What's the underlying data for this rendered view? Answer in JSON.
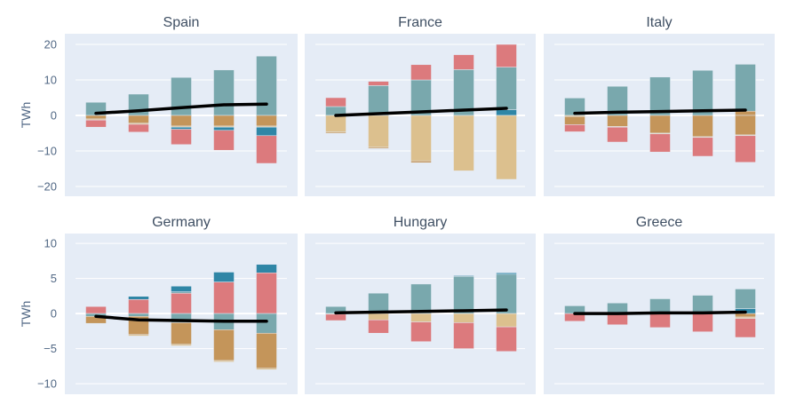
{
  "chart_data": {
    "type": "bar",
    "barmode": "relative",
    "ylabel": "TWh",
    "grid": true,
    "series_colors": {
      "teal": "#79a8ad",
      "blue": "#2f86a6",
      "ochre": "#c4955a",
      "sand": "#dcc08e",
      "red": "#dc7a7d",
      "net": "#000000"
    },
    "rows": [
      {
        "ylim": [
          -22.75,
          23
        ],
        "ticks": [
          20,
          10,
          0,
          -10,
          -20
        ],
        "tick_labels": [
          "20",
          "10",
          "0",
          "−10",
          "−20"
        ]
      },
      {
        "ylim": [
          -11.5,
          11.4
        ],
        "ticks": [
          10,
          5,
          0,
          -5,
          -10
        ],
        "tick_labels": [
          "10",
          "5",
          "0",
          "−5",
          "−10"
        ]
      }
    ],
    "panels": [
      {
        "title": "Spain",
        "row": 0,
        "col": 0,
        "bars": [
          {
            "pos": [
              [
                "teal",
                3.7
              ]
            ],
            "neg": [
              [
                "ochre",
                -1.0
              ],
              [
                "sand",
                -0.3
              ],
              [
                "red",
                -2.0
              ]
            ]
          },
          {
            "pos": [
              [
                "teal",
                6.0
              ]
            ],
            "neg": [
              [
                "ochre",
                -2.2
              ],
              [
                "sand",
                -0.3
              ],
              [
                "red",
                -2.2
              ]
            ]
          },
          {
            "pos": [
              [
                "teal",
                10.7
              ]
            ],
            "neg": [
              [
                "ochre",
                -3.0
              ],
              [
                "sand",
                -0.3
              ],
              [
                "blue",
                -0.6
              ],
              [
                "red",
                -4.3
              ]
            ]
          },
          {
            "pos": [
              [
                "teal",
                12.8
              ]
            ],
            "neg": [
              [
                "ochre",
                -3.0
              ],
              [
                "sand",
                -0.3
              ],
              [
                "blue",
                -0.9
              ],
              [
                "red",
                -5.6
              ]
            ]
          },
          {
            "pos": [
              [
                "teal",
                16.7
              ]
            ],
            "neg": [
              [
                "ochre",
                -3.0
              ],
              [
                "sand",
                -0.3
              ],
              [
                "blue",
                -2.4
              ],
              [
                "red",
                -7.8
              ]
            ]
          }
        ],
        "net": [
          0.6,
          1.3,
          2.2,
          3.0,
          3.2
        ]
      },
      {
        "title": "France",
        "row": 0,
        "col": 1,
        "bars": [
          {
            "pos": [
              [
                "teal",
                2.5
              ],
              [
                "red",
                2.5
              ]
            ],
            "neg": [
              [
                "sand",
                -4.7
              ],
              [
                "ochre",
                -0.3
              ]
            ]
          },
          {
            "pos": [
              [
                "teal",
                8.4
              ],
              [
                "red",
                1.2
              ]
            ],
            "neg": [
              [
                "sand",
                -9.0
              ],
              [
                "ochre",
                -0.3
              ]
            ]
          },
          {
            "pos": [
              [
                "teal",
                10.0
              ],
              [
                "red",
                4.3
              ]
            ],
            "neg": [
              [
                "sand",
                -12.8
              ],
              [
                "ochre",
                -0.5
              ]
            ]
          },
          {
            "pos": [
              [
                "teal",
                12.9
              ],
              [
                "red",
                4.2
              ]
            ],
            "neg": [
              [
                "sand",
                -15.6
              ]
            ]
          },
          {
            "pos": [
              [
                "blue",
                1.6
              ],
              [
                "teal",
                12.0
              ],
              [
                "red",
                6.4
              ]
            ],
            "neg": [
              [
                "sand",
                -18.0
              ]
            ]
          }
        ],
        "net": [
          0.0,
          0.5,
          1.0,
          1.5,
          2.0
        ]
      },
      {
        "title": "Italy",
        "row": 0,
        "col": 2,
        "bars": [
          {
            "pos": [
              [
                "teal",
                4.9
              ]
            ],
            "neg": [
              [
                "sand",
                -0.3
              ],
              [
                "ochre",
                -2.3
              ],
              [
                "red",
                -2.0
              ]
            ]
          },
          {
            "pos": [
              [
                "teal",
                8.2
              ]
            ],
            "neg": [
              [
                "ochre",
                -3.1
              ],
              [
                "sand",
                -0.2
              ],
              [
                "red",
                -4.2
              ]
            ]
          },
          {
            "pos": [
              [
                "teal",
                10.8
              ]
            ],
            "neg": [
              [
                "ochre",
                -5.0
              ],
              [
                "sand",
                -0.2
              ],
              [
                "red",
                -5.1
              ]
            ]
          },
          {
            "pos": [
              [
                "teal",
                12.7
              ]
            ],
            "neg": [
              [
                "ochre",
                -6.0
              ],
              [
                "sand",
                -0.2
              ],
              [
                "red",
                -5.3
              ]
            ]
          },
          {
            "pos": [
              [
                "ochre",
                1.2
              ],
              [
                "teal",
                13.2
              ]
            ],
            "neg": [
              [
                "ochre",
                -5.5
              ],
              [
                "sand",
                -0.2
              ],
              [
                "red",
                -7.5
              ]
            ]
          }
        ],
        "net": [
          0.6,
          0.9,
          1.1,
          1.3,
          1.5
        ]
      },
      {
        "title": "Germany",
        "row": 1,
        "col": 0,
        "bars": [
          {
            "pos": [
              [
                "red",
                1.0
              ]
            ],
            "neg": [
              [
                "teal",
                -0.4
              ],
              [
                "ochre",
                -1.0
              ]
            ]
          },
          {
            "pos": [
              [
                "red",
                2.0
              ],
              [
                "blue",
                0.45
              ]
            ],
            "neg": [
              [
                "teal",
                -0.4
              ],
              [
                "ochre",
                -2.6
              ],
              [
                "sand",
                -0.2
              ]
            ]
          },
          {
            "pos": [
              [
                "red",
                2.9
              ],
              [
                "teal",
                0.2
              ],
              [
                "blue",
                0.8
              ]
            ],
            "neg": [
              [
                "teal",
                -1.3
              ],
              [
                "ochre",
                -3.1
              ],
              [
                "sand",
                -0.2
              ]
            ]
          },
          {
            "pos": [
              [
                "red",
                4.5
              ],
              [
                "blue",
                1.4
              ]
            ],
            "neg": [
              [
                "teal",
                -2.3
              ],
              [
                "ochre",
                -4.4
              ],
              [
                "sand",
                -0.2
              ]
            ]
          },
          {
            "pos": [
              [
                "red",
                5.8
              ],
              [
                "blue",
                1.2
              ]
            ],
            "neg": [
              [
                "teal",
                -2.8
              ],
              [
                "ochre",
                -5.0
              ],
              [
                "sand",
                -0.2
              ]
            ]
          }
        ],
        "net": [
          -0.4,
          -0.9,
          -1.0,
          -1.1,
          -1.1
        ]
      },
      {
        "title": "Hungary",
        "row": 1,
        "col": 1,
        "bars": [
          {
            "pos": [
              [
                "teal",
                1.0
              ]
            ],
            "neg": [
              [
                "sand",
                -0.1
              ],
              [
                "red",
                -0.9
              ]
            ]
          },
          {
            "pos": [
              [
                "teal",
                2.9
              ]
            ],
            "neg": [
              [
                "sand",
                -0.9
              ],
              [
                "red",
                -1.9
              ]
            ]
          },
          {
            "pos": [
              [
                "teal",
                4.2
              ]
            ],
            "neg": [
              [
                "sand",
                -1.2
              ],
              [
                "red",
                -2.8
              ]
            ]
          },
          {
            "pos": [
              [
                "teal",
                5.3
              ],
              [
                "blue",
                0.1
              ]
            ],
            "neg": [
              [
                "sand",
                -1.3
              ],
              [
                "red",
                -3.7
              ]
            ]
          },
          {
            "pos": [
              [
                "teal",
                5.6
              ],
              [
                "blue",
                0.2
              ]
            ],
            "neg": [
              [
                "sand",
                -1.9
              ],
              [
                "red",
                -3.5
              ]
            ]
          }
        ],
        "net": [
          0.1,
          0.2,
          0.3,
          0.4,
          0.5
        ]
      },
      {
        "title": "Greece",
        "row": 1,
        "col": 2,
        "bars": [
          {
            "pos": [
              [
                "teal",
                1.1
              ]
            ],
            "neg": [
              [
                "red",
                -1.1
              ]
            ]
          },
          {
            "pos": [
              [
                "teal",
                1.5
              ]
            ],
            "neg": [
              [
                "red",
                -1.6
              ]
            ]
          },
          {
            "pos": [
              [
                "teal",
                2.1
              ]
            ],
            "neg": [
              [
                "red",
                -2.0
              ]
            ]
          },
          {
            "pos": [
              [
                "teal",
                2.6
              ]
            ],
            "neg": [
              [
                "red",
                -2.6
              ]
            ]
          },
          {
            "pos": [
              [
                "blue",
                0.7
              ],
              [
                "teal",
                2.8
              ]
            ],
            "neg": [
              [
                "ochre",
                -0.5
              ],
              [
                "sand",
                -0.2
              ],
              [
                "red",
                -2.7
              ]
            ]
          }
        ],
        "net": [
          0.0,
          0.0,
          0.1,
          0.1,
          0.2
        ]
      }
    ]
  }
}
